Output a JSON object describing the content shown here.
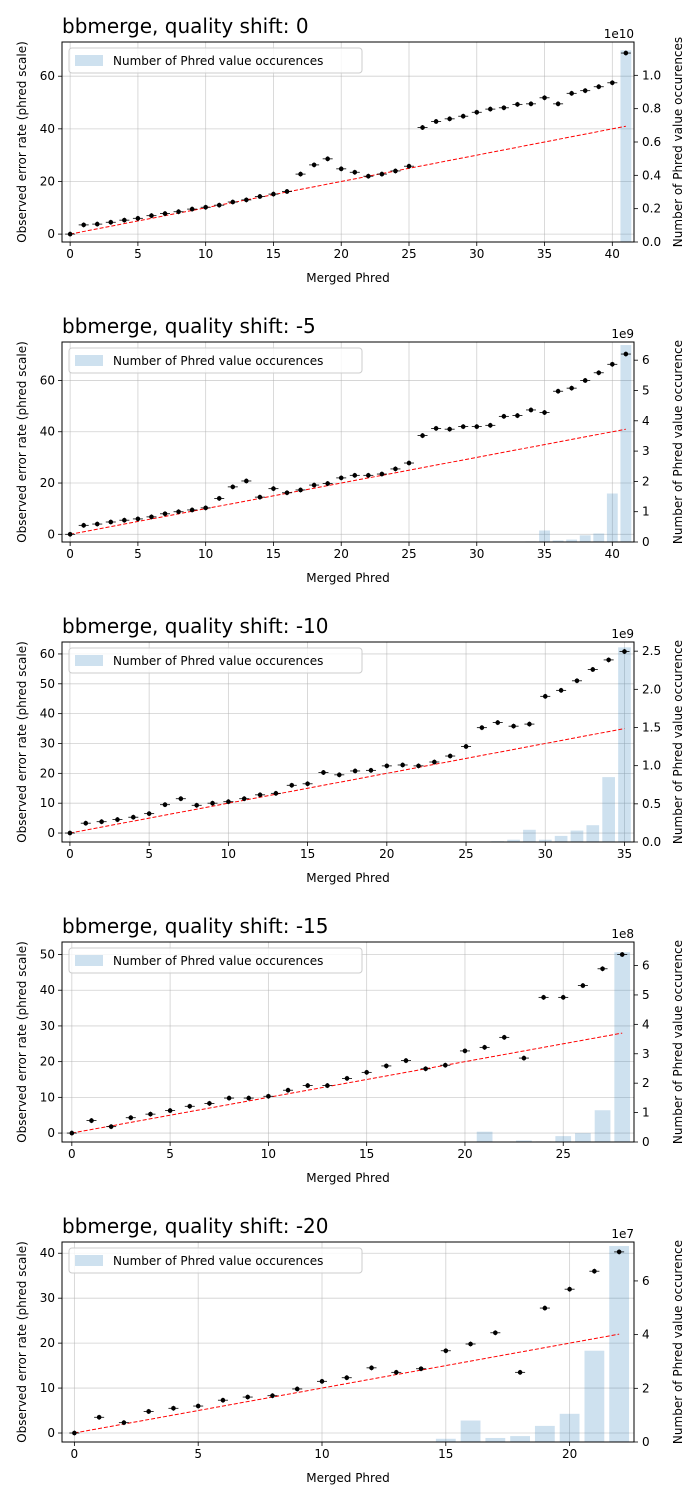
{
  "colors": {
    "bar": "#1f77b4",
    "bar_alpha": 0.22,
    "expected_line": "#ff0000",
    "points": "#000000",
    "grid": "#b0b0b0"
  },
  "chart_data": [
    {
      "type": "bar",
      "title": "bbmerge, quality shift: 0",
      "xlabel": "Merged Phred",
      "ylabel": "Observed error rate (phred scale)",
      "y2label": "Number of Phred value occurences",
      "y2_multiplier": "1e10",
      "legend": [
        "Number of Phred value occurences"
      ],
      "legend_position": "upper-left",
      "grid": true,
      "xlim": [
        -0.6,
        41.6
      ],
      "ylim": [
        -3,
        73
      ],
      "y2lim": [
        0,
        1.2
      ],
      "xticks": [
        0,
        5,
        10,
        15,
        20,
        25,
        30,
        35,
        40
      ],
      "yticks": [
        0,
        20,
        40,
        60
      ],
      "y2ticks": [
        "0.0",
        "0.2",
        "0.4",
        "0.6",
        "0.8",
        "1.0"
      ],
      "phred": [
        0,
        1,
        2,
        3,
        4,
        5,
        6,
        7,
        8,
        9,
        10,
        11,
        12,
        13,
        14,
        15,
        16,
        17,
        18,
        19,
        20,
        21,
        22,
        23,
        24,
        25,
        26,
        27,
        28,
        29,
        30,
        31,
        32,
        33,
        34,
        35,
        36,
        37,
        38,
        39,
        40,
        41
      ],
      "observed": [
        0,
        3.5,
        3.8,
        4.5,
        5.3,
        6,
        7,
        7.8,
        8.5,
        9.5,
        10.2,
        11,
        12.2,
        13,
        14.3,
        15.2,
        16.2,
        22.8,
        26.3,
        28.6,
        24.8,
        23.5,
        22,
        22.8,
        24,
        25.8,
        40.5,
        42.8,
        43.8,
        44.8,
        46.3,
        47.5,
        48,
        49.3,
        49.5,
        51.8,
        49.5,
        53.5,
        54.5,
        56,
        57.5,
        68.8
      ],
      "expected": [
        0,
        41
      ],
      "counts": [
        0,
        0,
        0,
        0,
        0,
        0,
        0,
        0,
        0,
        0,
        0,
        0,
        0,
        0,
        0,
        0,
        0,
        0,
        0,
        0,
        0,
        0,
        0,
        0,
        0,
        0,
        0,
        0,
        0,
        0,
        0,
        0,
        0,
        0,
        0,
        0,
        0,
        0,
        0,
        0,
        0,
        1.15
      ]
    },
    {
      "type": "bar",
      "title": "bbmerge, quality shift: -5",
      "xlabel": "Merged Phred",
      "ylabel": "Observed error rate (phred scale)",
      "y2label": "Number of Phred value occurence",
      "y2_multiplier": "1e9",
      "legend": [
        "Number of Phred value occurences"
      ],
      "legend_position": "upper-left",
      "grid": true,
      "xlim": [
        -0.6,
        41.6
      ],
      "ylim": [
        -3,
        75
      ],
      "y2lim": [
        0,
        6.6
      ],
      "xticks": [
        0,
        5,
        10,
        15,
        20,
        25,
        30,
        35,
        40
      ],
      "yticks": [
        0,
        20,
        40,
        60
      ],
      "y2ticks": [
        "0",
        "1",
        "2",
        "3",
        "4",
        "5",
        "6"
      ],
      "phred": [
        0,
        1,
        2,
        3,
        4,
        5,
        6,
        7,
        8,
        9,
        10,
        11,
        12,
        13,
        14,
        15,
        16,
        17,
        18,
        19,
        20,
        21,
        22,
        23,
        24,
        25,
        26,
        27,
        28,
        29,
        30,
        31,
        32,
        33,
        34,
        35,
        36,
        37,
        38,
        39,
        40,
        41
      ],
      "observed": [
        0,
        3.5,
        4,
        4.8,
        5.5,
        6,
        6.8,
        8,
        8.8,
        9.5,
        10.3,
        14,
        18.5,
        20.8,
        14.5,
        17.8,
        16.2,
        17.3,
        19.2,
        19.8,
        22,
        23,
        23,
        23.5,
        25.5,
        27.8,
        38.5,
        41.3,
        41,
        42,
        42,
        42.5,
        46,
        46.3,
        48.5,
        47.5,
        55.8,
        57,
        60,
        63,
        66.3,
        70.3
      ],
      "expected": [
        0,
        41
      ],
      "counts": [
        0,
        0,
        0,
        0,
        0,
        0,
        0,
        0,
        0,
        0,
        0,
        0,
        0,
        0,
        0,
        0,
        0,
        0,
        0,
        0,
        0,
        0,
        0,
        0,
        0,
        0,
        0,
        0,
        0,
        0,
        0,
        0.01,
        0.01,
        0.01,
        0.02,
        0.38,
        0.05,
        0.08,
        0.22,
        0.28,
        1.6,
        6.5
      ]
    },
    {
      "type": "bar",
      "title": "bbmerge, quality shift: -10",
      "xlabel": "Merged Phred",
      "ylabel": "Observed error rate (phred scale)",
      "y2label": "Number of Phred value occurence",
      "y2_multiplier": "1e9",
      "legend": [
        "Number of Phred value occurences"
      ],
      "legend_position": "upper-left",
      "grid": true,
      "xlim": [
        -0.5,
        35.6
      ],
      "ylim": [
        -3,
        64
      ],
      "y2lim": [
        0,
        2.62
      ],
      "xticks": [
        0,
        5,
        10,
        15,
        20,
        25,
        30,
        35
      ],
      "yticks": [
        0,
        10,
        20,
        30,
        40,
        50,
        60
      ],
      "y2ticks": [
        "0.0",
        "0.5",
        "1.0",
        "1.5",
        "2.0",
        "2.5"
      ],
      "phred": [
        0,
        1,
        2,
        3,
        4,
        5,
        6,
        7,
        8,
        9,
        10,
        11,
        12,
        13,
        14,
        15,
        16,
        17,
        18,
        19,
        20,
        21,
        22,
        23,
        24,
        25,
        26,
        27,
        28,
        29,
        30,
        31,
        32,
        33,
        34,
        35
      ],
      "observed": [
        0,
        3.3,
        3.8,
        4.5,
        5.3,
        6.5,
        9.5,
        11.5,
        9.3,
        10,
        10.5,
        11.5,
        12.8,
        13.3,
        16,
        16.5,
        20.3,
        19.5,
        20.8,
        21,
        22.5,
        22.8,
        22.5,
        23.8,
        25.8,
        29,
        35.3,
        37,
        35.8,
        36.5,
        45.8,
        47.8,
        51,
        54.8,
        58,
        60.8
      ],
      "expected": [
        0,
        35
      ],
      "counts": [
        0,
        0,
        0,
        0,
        0,
        0,
        0,
        0,
        0,
        0,
        0,
        0,
        0,
        0,
        0,
        0,
        0,
        0,
        0,
        0,
        0,
        0,
        0.005,
        0.005,
        0.005,
        0.005,
        0.005,
        0.01,
        0.03,
        0.16,
        0.03,
        0.08,
        0.15,
        0.22,
        0.85,
        2.55
      ]
    },
    {
      "type": "bar",
      "title": "bbmerge, quality shift: -15",
      "xlabel": "Merged Phred",
      "ylabel": "Observed error rate (phred scale)",
      "y2label": "Number of Phred value occurence",
      "y2_multiplier": "1e8",
      "legend": [
        "Number of Phred value occurences"
      ],
      "legend_position": "upper-left",
      "grid": true,
      "xlim": [
        -0.5,
        28.6
      ],
      "ylim": [
        -2.5,
        53.5
      ],
      "y2lim": [
        0,
        6.8
      ],
      "xticks": [
        0,
        5,
        10,
        15,
        20,
        25
      ],
      "yticks": [
        0,
        10,
        20,
        30,
        40,
        50
      ],
      "y2ticks": [
        "0",
        "1",
        "2",
        "3",
        "4",
        "5",
        "6"
      ],
      "phred": [
        0,
        1,
        2,
        3,
        4,
        5,
        6,
        7,
        8,
        9,
        10,
        11,
        12,
        13,
        14,
        15,
        16,
        17,
        18,
        19,
        20,
        21,
        22,
        23,
        24,
        25,
        26,
        27,
        28
      ],
      "observed": [
        0,
        3.5,
        1.8,
        4.3,
        5.3,
        6.3,
        7.5,
        8.3,
        9.8,
        9.8,
        10.3,
        12,
        13.3,
        13.3,
        15.3,
        17,
        18.8,
        20.3,
        18,
        19,
        23,
        24,
        26.8,
        21,
        38,
        38,
        41.3,
        46,
        50
      ],
      "expected": [
        0,
        28
      ],
      "counts": [
        0,
        0,
        0,
        0,
        0,
        0,
        0,
        0,
        0,
        0,
        0,
        0,
        0,
        0,
        0,
        0,
        0,
        0,
        0,
        0,
        0,
        0.35,
        0,
        0.05,
        0.02,
        0.2,
        0.3,
        1.08,
        6.45
      ]
    },
    {
      "type": "bar",
      "title": "bbmerge, quality shift: -20",
      "xlabel": "Merged Phred",
      "ylabel": "Observed error rate (phred scale)",
      "y2label": "Number of Phred value occurence",
      "y2_multiplier": "1e7",
      "legend": [
        "Number of Phred value occurences"
      ],
      "legend_position": "upper-left",
      "grid": true,
      "xlim": [
        -0.5,
        22.6
      ],
      "ylim": [
        -2,
        42.5
      ],
      "y2lim": [
        0,
        7.45
      ],
      "xticks": [
        0,
        5,
        10,
        15,
        20
      ],
      "yticks": [
        0,
        10,
        20,
        30,
        40
      ],
      "y2ticks": [
        "0",
        "2",
        "4",
        "6"
      ],
      "phred": [
        0,
        1,
        2,
        3,
        4,
        5,
        6,
        7,
        8,
        9,
        10,
        11,
        12,
        13,
        14,
        15,
        16,
        17,
        18,
        19,
        20,
        21,
        22
      ],
      "observed": [
        0,
        3.5,
        2.3,
        4.8,
        5.5,
        6,
        7.3,
        8,
        8.3,
        9.8,
        11.5,
        12.3,
        14.5,
        13.5,
        14.3,
        18.3,
        19.8,
        22.3,
        13.5,
        27.8,
        32,
        36,
        40.3
      ],
      "expected": [
        0,
        22
      ],
      "counts": [
        0,
        0,
        0,
        0,
        0,
        0,
        0,
        0,
        0,
        0,
        0,
        0,
        0,
        0,
        0,
        0.12,
        0.8,
        0.15,
        0.22,
        0.6,
        1.05,
        3.4,
        7.3
      ]
    }
  ]
}
